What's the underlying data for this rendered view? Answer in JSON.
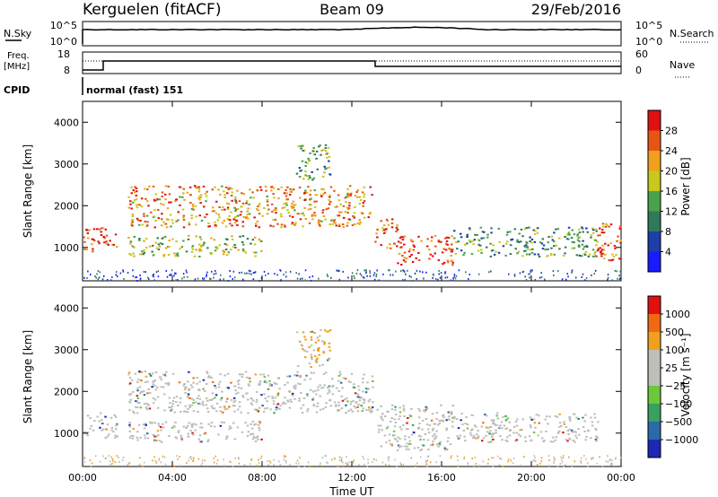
{
  "header": {
    "station": "Kerguelen (fitACF)",
    "beam": "Beam 09",
    "date": "29/Feb/2016"
  },
  "status_panel": {
    "nsky_label": "N.Sky",
    "nsky_ticks": [
      "10^5",
      "10^0"
    ],
    "nsearch_label": "N.Search",
    "nsearch_ticks": [
      "10^5",
      "10^0"
    ],
    "freq_label": "Freq.",
    "freq_unit": "[MHz]",
    "freq_ticks": [
      "18",
      "8"
    ],
    "nave_label": "Nave",
    "nave_ticks": [
      "60",
      "0"
    ],
    "cpid_label": "CPID",
    "cpid_value": "normal (fast) 151"
  },
  "chart_data": [
    {
      "type": "heatmap",
      "name": "power-panel",
      "ylabel": "Slant Range [km]",
      "xlabel": "",
      "ylim": [
        200,
        4500
      ],
      "yticks": [
        "1000",
        "2000",
        "3000",
        "4000"
      ],
      "colorbar": {
        "label": "Power [dB]",
        "ticks": [
          "4",
          "8",
          "12",
          "16",
          "20",
          "24",
          "28"
        ],
        "colors": [
          "#1a1aff",
          "#1e3ea8",
          "#2e7a5a",
          "#4aa24a",
          "#c8c81e",
          "#f0a01e",
          "#e65514",
          "#e01010"
        ]
      },
      "features": [
        {
          "t0": 0.0,
          "t1": 1.5,
          "r0": 900,
          "r1": 1500,
          "level": 0.9
        },
        {
          "t0": 2.0,
          "t1": 12.9,
          "r0": 1500,
          "r1": 2500,
          "level": 0.75
        },
        {
          "t0": 2.0,
          "t1": 8.0,
          "r0": 800,
          "r1": 1300,
          "level": 0.5
        },
        {
          "t0": 13.0,
          "t1": 14.0,
          "r0": 1000,
          "r1": 1700,
          "level": 0.85
        },
        {
          "t0": 14.0,
          "t1": 16.5,
          "r0": 600,
          "r1": 1300,
          "level": 0.95
        },
        {
          "t0": 16.5,
          "t1": 23.0,
          "r0": 800,
          "r1": 1500,
          "level": 0.35
        },
        {
          "t0": 22.8,
          "t1": 24.0,
          "r0": 700,
          "r1": 1600,
          "level": 0.85
        },
        {
          "t0": 9.5,
          "t1": 11.0,
          "r0": 2600,
          "r1": 3500,
          "level": 0.45
        }
      ]
    },
    {
      "type": "heatmap",
      "name": "velocity-panel",
      "ylabel": "Slant Range [km]",
      "xlabel": "Time UT",
      "ylim": [
        200,
        4500
      ],
      "yticks": [
        "1000",
        "2000",
        "3000",
        "4000"
      ],
      "xticks": [
        "00:00",
        "04:00",
        "08:00",
        "12:00",
        "16:00",
        "20:00",
        "00:00"
      ],
      "colorbar": {
        "label": "Velocity [m s⁻¹]",
        "ticks": [
          "1000",
          "500",
          "100",
          "25",
          "−25",
          "−100",
          "−500",
          "−1000"
        ],
        "colors": [
          "#1e28b4",
          "#2a6aa8",
          "#38a060",
          "#6cc83a",
          "#bebeba",
          "#bebeba",
          "#f0a020",
          "#f06a14",
          "#e01010"
        ]
      },
      "features": [
        {
          "t0": 0.0,
          "t1": 1.5,
          "r0": 900,
          "r1": 1500,
          "level": 0.6
        },
        {
          "t0": 2.0,
          "t1": 12.9,
          "r0": 1500,
          "r1": 2500,
          "level": 0.5
        },
        {
          "t0": 2.0,
          "t1": 8.0,
          "r0": 800,
          "r1": 1300,
          "level": 0.5
        },
        {
          "t0": 13.0,
          "t1": 16.5,
          "r0": 600,
          "r1": 1700,
          "level": 0.5
        },
        {
          "t0": 16.5,
          "t1": 23.0,
          "r0": 800,
          "r1": 1500,
          "level": 0.5
        },
        {
          "t0": 9.5,
          "t1": 11.0,
          "r0": 2600,
          "r1": 3500,
          "level": 0.8
        }
      ]
    }
  ]
}
